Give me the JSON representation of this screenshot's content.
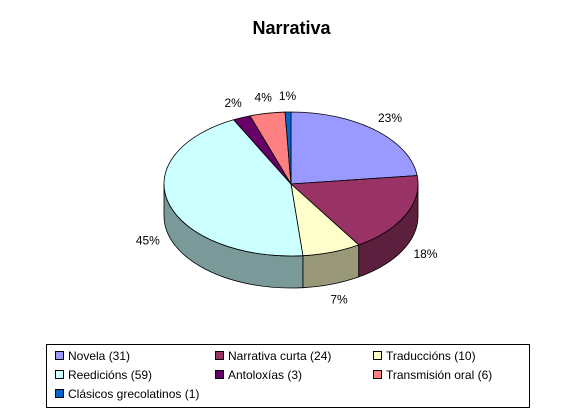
{
  "chart_data": {
    "type": "pie",
    "title": "Narrativa",
    "slices": [
      {
        "label": "Novela  (31)",
        "value": 31,
        "percent_label": "23%",
        "color": "#9999ff",
        "side_color": "#5c5c99"
      },
      {
        "label": "Narrativa curta (24)",
        "value": 24,
        "percent_label": "18%",
        "color": "#993366",
        "side_color": "#5c1f3d"
      },
      {
        "label": "Traduccións (10)",
        "value": 10,
        "percent_label": "7%",
        "color": "#ffffcc",
        "side_color": "#99997a"
      },
      {
        "label": "Reedicións (59)",
        "value": 59,
        "percent_label": "45%",
        "color": "#ccffff",
        "side_color": "#7a9999"
      },
      {
        "label": "Antoloxías (3)",
        "value": 3,
        "percent_label": "2%",
        "color": "#660066",
        "side_color": "#3d003d"
      },
      {
        "label": "Transmisión oral (6)",
        "value": 6,
        "percent_label": "4%",
        "color": "#ff8080",
        "side_color": "#994d4d"
      },
      {
        "label": "Clásicos grecolatinos (1)",
        "value": 1,
        "percent_label": "1%",
        "color": "#0066cc",
        "side_color": "#003d7a"
      }
    ],
    "legend_position": "bottom",
    "style": "3d"
  }
}
